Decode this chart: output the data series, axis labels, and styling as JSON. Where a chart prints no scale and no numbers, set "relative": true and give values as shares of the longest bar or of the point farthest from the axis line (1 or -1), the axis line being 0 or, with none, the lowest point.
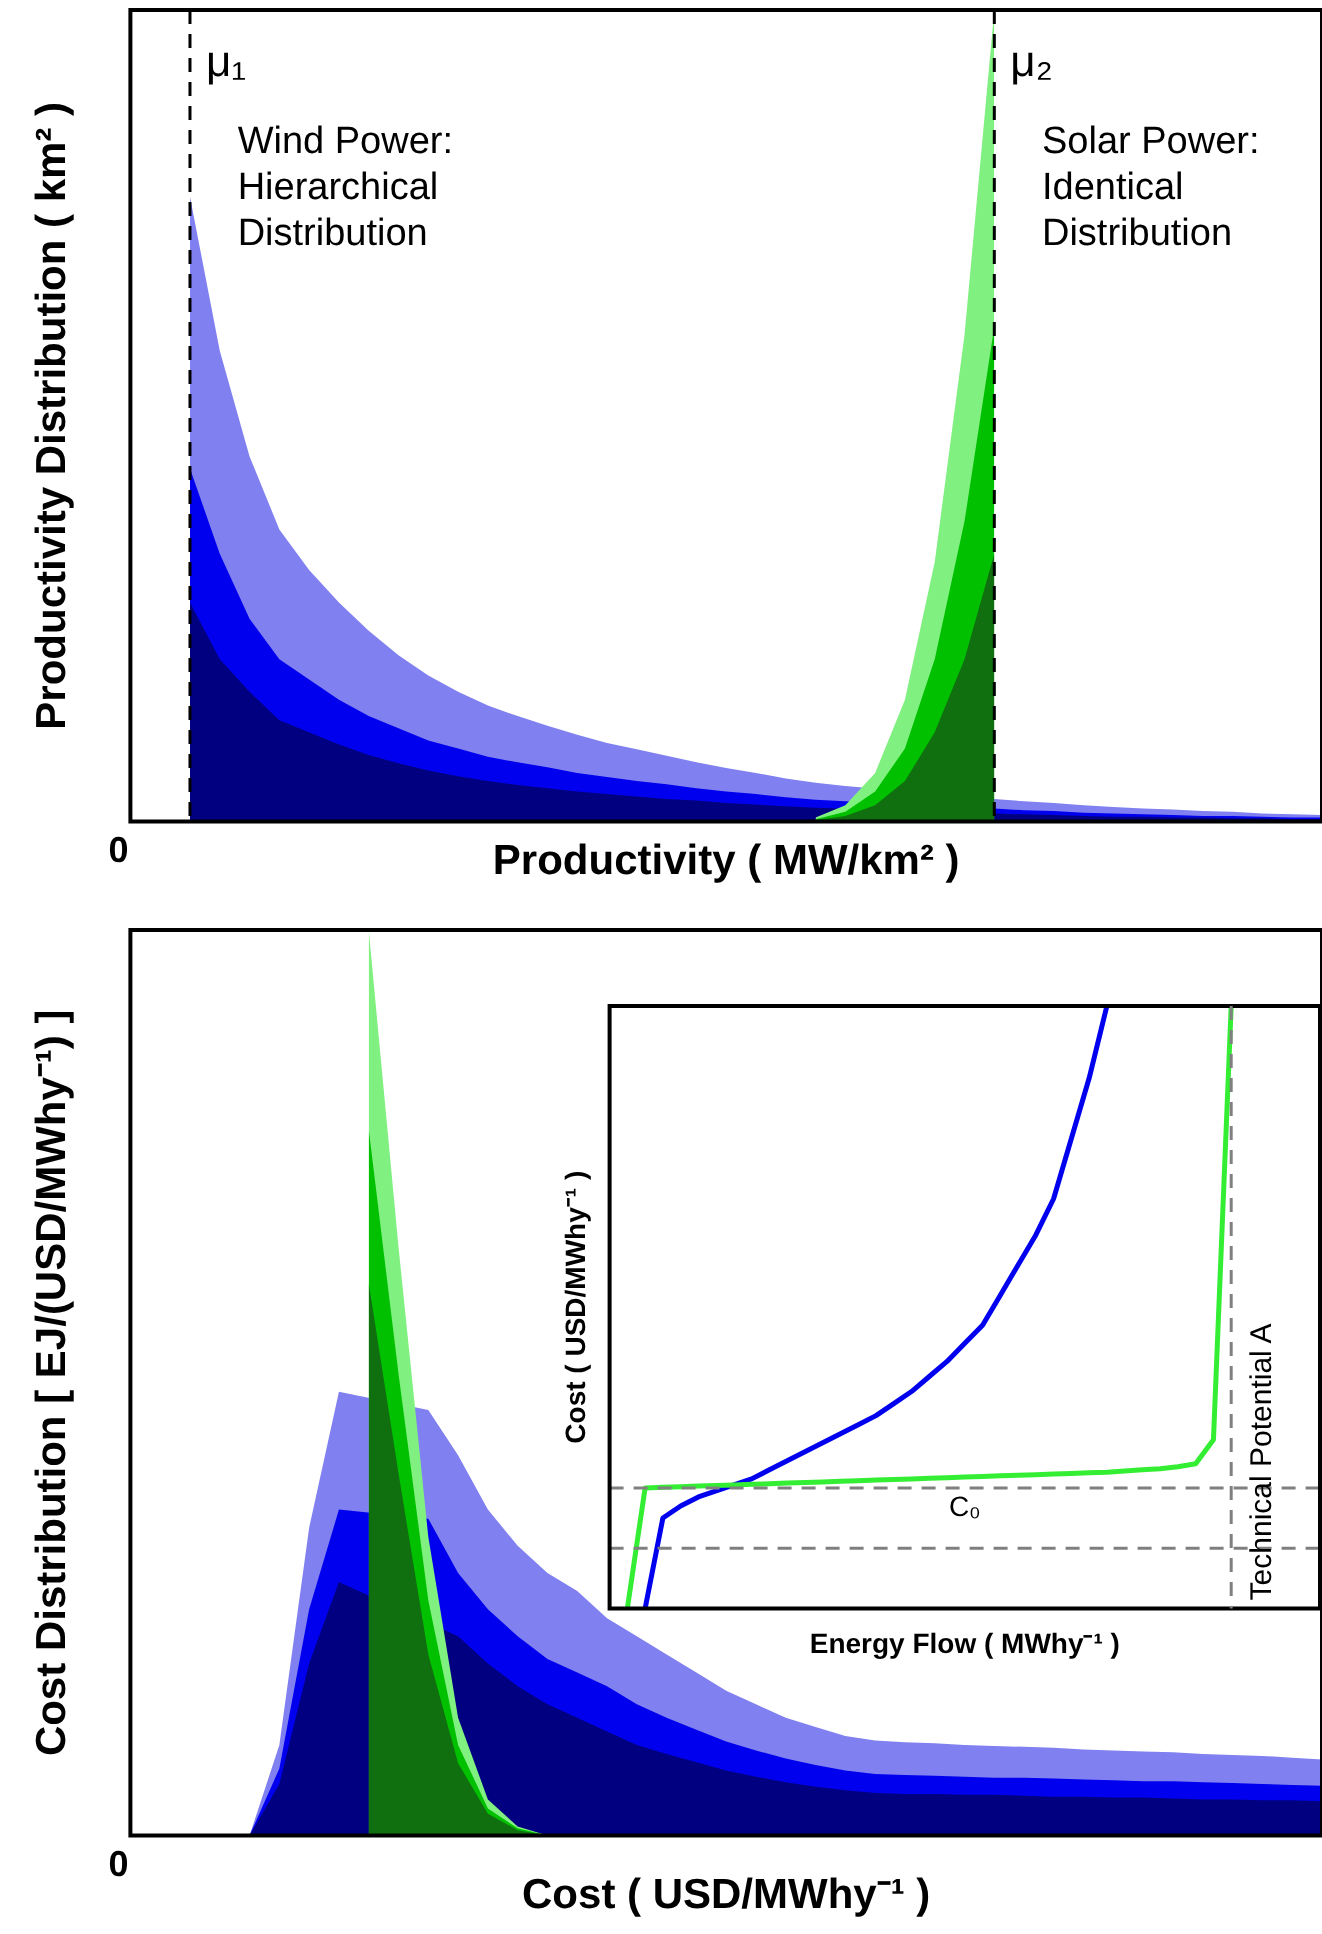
{
  "chart_data": [
    {
      "type": "area",
      "xlabel": "Productivity ( MW/km² )",
      "ylabel": "Productivity Distribution ( km² )",
      "relative": true,
      "categories": [
        null,
        null,
        null,
        null,
        null,
        null,
        null,
        null,
        null,
        null,
        null,
        null,
        null,
        null,
        null,
        null,
        null,
        null,
        null,
        null,
        null,
        null,
        null,
        null,
        null,
        null,
        null,
        null,
        null,
        null,
        null,
        null,
        null,
        null,
        null,
        null,
        null,
        null,
        null,
        null,
        null
      ],
      "series": [
        {
          "color": "#8080f0",
          "values": [
            null,
            null,
            0.77,
            0.58,
            0.45,
            0.36,
            0.31,
            0.27,
            0.235,
            0.205,
            0.18,
            0.16,
            0.143,
            0.13,
            0.118,
            0.107,
            0.097,
            0.089,
            0.081,
            0.073,
            0.066,
            0.06,
            0.053,
            0.048,
            0.044,
            null,
            null,
            null,
            null,
            0.028,
            0.025,
            0.023,
            0.02,
            0.018,
            0.016,
            0.015,
            0.013,
            0.012,
            0.01,
            0.009,
            0.008
          ]
        },
        {
          "color": "#0000ee",
          "values": [
            null,
            null,
            0.435,
            0.33,
            0.25,
            0.2,
            0.175,
            0.15,
            0.13,
            0.115,
            0.1,
            0.09,
            0.08,
            0.073,
            0.067,
            0.06,
            0.055,
            0.05,
            0.046,
            0.041,
            0.037,
            0.034,
            0.03,
            0.027,
            0.025,
            null,
            null,
            null,
            null,
            0.016,
            0.014,
            0.013,
            0.011,
            0.01,
            0.009,
            0.008,
            0.007,
            0.007,
            0.006,
            0.005,
            0.005
          ]
        },
        {
          "color": "#000080",
          "values": [
            null,
            null,
            0.27,
            0.2,
            0.16,
            0.125,
            0.11,
            0.095,
            0.082,
            0.072,
            0.063,
            0.056,
            0.05,
            0.045,
            0.041,
            0.037,
            0.034,
            0.031,
            0.028,
            0.026,
            0.023,
            0.021,
            0.019,
            0.017,
            null,
            null,
            null,
            null,
            null,
            0.01,
            0.009,
            0.008,
            0.007,
            0.006,
            0.006,
            0.005,
            0.005,
            0.004,
            0.004,
            0.003,
            0.003
          ]
        },
        {
          "color": "#80f080",
          "values": [
            null,
            null,
            null,
            null,
            null,
            null,
            null,
            null,
            null,
            null,
            null,
            null,
            null,
            null,
            null,
            null,
            null,
            null,
            null,
            null,
            null,
            null,
            null,
            0.005,
            0.02,
            0.06,
            0.15,
            0.32,
            0.6,
            1.0,
            null,
            null,
            null,
            null,
            null,
            null,
            null,
            null,
            null,
            null,
            null
          ]
        },
        {
          "color": "#00c000",
          "values": [
            null,
            null,
            null,
            null,
            null,
            null,
            null,
            null,
            null,
            null,
            null,
            null,
            null,
            null,
            null,
            null,
            null,
            null,
            null,
            null,
            null,
            null,
            null,
            0.003,
            0.012,
            0.037,
            0.09,
            0.2,
            0.37,
            0.61,
            null,
            null,
            null,
            null,
            null,
            null,
            null,
            null,
            null,
            null,
            null
          ]
        },
        {
          "color": "#107010",
          "values": [
            null,
            null,
            null,
            null,
            null,
            null,
            null,
            null,
            null,
            null,
            null,
            null,
            null,
            null,
            null,
            null,
            null,
            null,
            null,
            null,
            null,
            null,
            null,
            0.002,
            0.007,
            0.02,
            0.05,
            0.11,
            0.2,
            0.33,
            null,
            null,
            null,
            null,
            null,
            null,
            null,
            null,
            null,
            null,
            null
          ]
        }
      ],
      "annotations": [
        "Wind Power:\nHierarchical\nDistribution",
        "Solar Power:\nIdentical\nDistribution",
        "0",
        "μ₁",
        "μ₂"
      ]
    },
    {
      "type": "area",
      "xlabel": "Cost ( USD/MWhy⁻¹ )",
      "ylabel": "Cost Distribution [ EJ/(USD/MWhy⁻¹) ]",
      "relative": true,
      "categories": [
        null,
        null,
        null,
        null,
        null,
        null,
        null,
        null,
        null,
        null,
        null,
        null,
        null,
        null,
        null,
        null,
        null,
        null,
        null,
        null,
        null,
        null,
        null,
        null,
        null,
        null,
        null,
        null,
        null,
        null,
        null,
        null,
        null,
        null,
        null,
        null,
        null,
        null,
        null,
        null,
        null
      ],
      "series": [
        {
          "color": "#8080f0",
          "values": [
            null,
            null,
            null,
            null,
            0,
            0.1,
            0.34,
            0.49,
            null,
            null,
            0.47,
            0.42,
            0.36,
            0.32,
            0.29,
            0.27,
            0.24,
            0.22,
            0.2,
            0.18,
            0.16,
            0.145,
            0.13,
            0.12,
            0.11,
            0.105,
            0.103,
            0.102,
            0.1,
            0.099,
            0.098,
            0.097,
            0.095,
            0.094,
            0.093,
            0.092,
            0.09,
            0.089,
            0.088,
            0.086,
            0.084
          ]
        },
        {
          "color": "#0000ee",
          "values": [
            null,
            null,
            null,
            null,
            0,
            0.074,
            0.25,
            0.36,
            null,
            null,
            0.35,
            0.29,
            0.25,
            0.22,
            0.195,
            0.18,
            0.165,
            0.145,
            0.13,
            0.117,
            0.104,
            0.094,
            0.085,
            0.078,
            0.072,
            0.068,
            0.067,
            0.066,
            0.065,
            0.064,
            0.064,
            0.063,
            0.062,
            0.061,
            0.06,
            0.06,
            0.059,
            0.058,
            0.057,
            0.056,
            0.055
          ]
        },
        {
          "color": "#000080",
          "values": [
            null,
            null,
            null,
            null,
            0,
            0.057,
            0.19,
            0.28,
            null,
            null,
            null,
            0.22,
            0.19,
            0.165,
            0.145,
            0.13,
            0.115,
            0.1,
            0.09,
            0.081,
            0.072,
            0.065,
            0.059,
            0.054,
            0.05,
            0.047,
            0.046,
            0.046,
            0.045,
            0.045,
            0.044,
            0.043,
            0.043,
            0.042,
            0.042,
            0.041,
            0.04,
            0.04,
            0.039,
            0.039,
            0.038
          ]
        },
        {
          "color": "#80f080",
          "values": [
            null,
            null,
            null,
            null,
            null,
            null,
            null,
            null,
            1.0,
            0.65,
            0.33,
            0.13,
            0.04,
            0.01,
            0,
            null,
            null,
            null,
            null,
            null,
            null,
            null,
            null,
            null,
            null,
            null,
            null,
            null,
            null,
            null,
            null,
            null,
            null,
            null,
            null,
            null,
            null,
            null,
            null,
            null,
            null
          ]
        },
        {
          "color": "#00c000",
          "values": [
            null,
            null,
            null,
            null,
            null,
            null,
            null,
            null,
            0.78,
            0.51,
            0.26,
            0.1,
            0.03,
            0.008,
            0,
            null,
            null,
            null,
            null,
            null,
            null,
            null,
            null,
            null,
            null,
            null,
            null,
            null,
            null,
            null,
            null,
            null,
            null,
            null,
            null,
            null,
            null,
            null,
            null,
            null,
            null
          ]
        },
        {
          "color": "#107010",
          "values": [
            null,
            null,
            null,
            null,
            null,
            null,
            null,
            null,
            0.61,
            0.4,
            0.2,
            0.08,
            0.024,
            0.006,
            0,
            null,
            null,
            null,
            null,
            null,
            null,
            null,
            null,
            null,
            null,
            null,
            null,
            null,
            null,
            null,
            null,
            null,
            null,
            null,
            null,
            null,
            null,
            null,
            null,
            null,
            null
          ]
        }
      ],
      "annotations": [
        "0"
      ]
    },
    {
      "type": "line",
      "xlabel": "Energy Flow ( MWhy⁻¹ )",
      "ylabel": "Cost ( USD/MWhy⁻¹ )",
      "relative": true,
      "categories": [
        null,
        null,
        null,
        null,
        null,
        null,
        null,
        null,
        null,
        null,
        null,
        null,
        null,
        null,
        null,
        null,
        null,
        null,
        null,
        null,
        null,
        null,
        null,
        null,
        null,
        null,
        null,
        null,
        null,
        null,
        null,
        null,
        null,
        null,
        null,
        null,
        null,
        null,
        null,
        null,
        null
      ],
      "series": [
        {
          "color": "#0000ee",
          "values": [
            null,
            null,
            0,
            0.15,
            0.17,
            0.185,
            0.195,
            0.205,
            0.215,
            0.23,
            0.245,
            0.26,
            0.275,
            0.29,
            0.305,
            0.32,
            0.34,
            0.36,
            0.385,
            0.41,
            0.44,
            0.47,
            0.52,
            0.57,
            0.62,
            0.68,
            0.78,
            0.88,
            1.0,
            null,
            null,
            null,
            null,
            null,
            null,
            null,
            null,
            null,
            null,
            null,
            null
          ]
        },
        {
          "color": "#33ee33",
          "values": [
            null,
            0,
            0.2,
            0.201,
            0.202,
            0.203,
            0.204,
            0.205,
            0.206,
            0.207,
            0.208,
            0.209,
            0.21,
            0.211,
            0.212,
            0.213,
            0.214,
            0.215,
            0.216,
            0.217,
            0.218,
            0.219,
            0.22,
            0.221,
            0.222,
            0.223,
            0.224,
            0.225,
            0.226,
            0.228,
            0.23,
            0.232,
            0.235,
            0.24,
            0.28,
            1.0,
            null,
            null,
            null,
            null,
            null
          ]
        }
      ],
      "ref_lines": [
        {
          "axis": "y",
          "value": 0.2,
          "label": "C₀",
          "line_style": "dashed",
          "color": "#808080"
        },
        {
          "axis": "y",
          "value": 0.1,
          "line_style": "dashed",
          "color": "#808080"
        }
      ],
      "annotations": [
        "Technical Potential A"
      ]
    }
  ]
}
